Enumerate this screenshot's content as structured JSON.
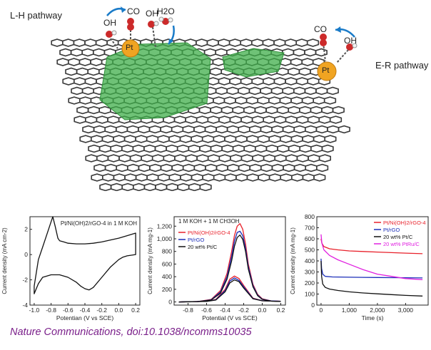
{
  "scene": {
    "lh_label": "L-H pathway",
    "er_label": "E-R pathway",
    "molecules": {
      "co": "CO",
      "oh": "OH",
      "h2o": "H2O"
    },
    "pt": "Pt"
  },
  "caption": "Nature Communications, doi:10.1038/ncomms10035",
  "chart_data": [
    {
      "type": "line",
      "annotation": "Pt/Ni(OH)2/rGO-4 in 1 M KOH",
      "xlabel": "Potentian (V vs SCE)",
      "ylabel": "Current density (mA cm-2)",
      "xlim": [
        -1.05,
        0.25
      ],
      "ylim": [
        -4,
        3
      ],
      "xticks": [
        "-1.0",
        "-0.8",
        "-0.6",
        "-0.4",
        "-0.2",
        "0.0",
        "0.2"
      ],
      "xtick_values": [
        -1.0,
        -0.8,
        -0.6,
        -0.4,
        -0.2,
        0.0,
        0.2
      ],
      "yticks": [
        "-4",
        "-2",
        "0",
        "2"
      ],
      "ytick_values": [
        -4,
        -2,
        0,
        2
      ],
      "series": [
        {
          "x": [
            -1.0,
            -0.95,
            -0.9,
            -0.85,
            -0.8,
            -0.78,
            -0.75,
            -0.72,
            -0.7,
            -0.65,
            -0.6,
            -0.5,
            -0.4,
            -0.3,
            -0.2,
            -0.1,
            0.0,
            0.1,
            0.2,
            0.2,
            0.15,
            0.1,
            0.05,
            0.0,
            -0.1,
            -0.2,
            -0.3,
            -0.35,
            -0.4,
            -0.45,
            -0.5,
            -0.6,
            -0.7,
            -0.8,
            -0.9,
            -0.95,
            -1.0,
            -1.0
          ],
          "y": [
            -2.5,
            -0.4,
            0.6,
            1.6,
            2.6,
            3.0,
            2.2,
            1.3,
            1.1,
            1.0,
            0.9,
            0.85,
            0.85,
            0.9,
            1.0,
            1.15,
            1.3,
            1.5,
            1.7,
            0.0,
            -0.05,
            -0.1,
            -0.2,
            -0.4,
            -1.0,
            -1.8,
            -2.6,
            -2.8,
            -2.7,
            -2.5,
            -2.2,
            -1.8,
            -1.6,
            -1.6,
            -1.8,
            -2.3,
            -3.1,
            -2.5
          ]
        }
      ]
    },
    {
      "type": "line",
      "annotation": "1 M KOH + 1 M CH3OH",
      "xlabel": "Potential (V vs SCE)",
      "ylabel": "Current density (mA mg-1)",
      "xlim": [
        -0.95,
        0.25
      ],
      "ylim": [
        -50,
        1350
      ],
      "xticks": [
        "-0.8",
        "-0.6",
        "-0.4",
        "-0.2",
        "0.0",
        "0.2"
      ],
      "xtick_values": [
        -0.8,
        -0.6,
        -0.4,
        -0.2,
        0.0,
        0.2
      ],
      "yticks": [
        "0",
        "200",
        "400",
        "600",
        "800",
        "1,000",
        "1,200"
      ],
      "ytick_values": [
        0,
        200,
        400,
        600,
        800,
        1000,
        1200
      ],
      "series": [
        {
          "name": "Pt/Ni(OH)2/rGO-4",
          "color": "#e8202a",
          "x": [
            -0.9,
            -0.7,
            -0.55,
            -0.45,
            -0.38,
            -0.33,
            -0.3,
            -0.27,
            -0.24,
            -0.21,
            -0.18,
            -0.15,
            -0.1,
            -0.05,
            0.0,
            0.1,
            0.2
          ],
          "y": [
            0,
            5,
            40,
            180,
            450,
            800,
            1050,
            1200,
            1240,
            1150,
            920,
            600,
            280,
            120,
            50,
            15,
            10
          ],
          "back_x": [
            0.2,
            0.0,
            -0.1,
            -0.2,
            -0.25,
            -0.3,
            -0.35,
            -0.4,
            -0.5,
            -0.6,
            -0.9
          ],
          "back_y": [
            10,
            20,
            60,
            260,
            370,
            410,
            360,
            200,
            40,
            10,
            0
          ]
        },
        {
          "name": "Pt/rGO",
          "color": "#1a2db8",
          "x": [
            -0.9,
            -0.7,
            -0.55,
            -0.45,
            -0.38,
            -0.33,
            -0.3,
            -0.27,
            -0.24,
            -0.21,
            -0.18,
            -0.15,
            -0.1,
            -0.05,
            0.0,
            0.1,
            0.2
          ],
          "y": [
            0,
            5,
            35,
            160,
            400,
            720,
            960,
            1100,
            1120,
            1050,
            850,
            560,
            260,
            110,
            45,
            15,
            10
          ],
          "back_x": [
            0.2,
            0.0,
            -0.1,
            -0.2,
            -0.25,
            -0.3,
            -0.35,
            -0.4,
            -0.5,
            -0.6,
            -0.9
          ],
          "back_y": [
            10,
            20,
            55,
            240,
            340,
            380,
            330,
            180,
            35,
            10,
            0
          ]
        },
        {
          "name": "20 wt% Pt/C",
          "color": "#111111",
          "x": [
            -0.9,
            -0.7,
            -0.55,
            -0.45,
            -0.38,
            -0.33,
            -0.3,
            -0.27,
            -0.24,
            -0.21,
            -0.18,
            -0.15,
            -0.1,
            -0.05,
            0.0,
            0.1,
            0.2
          ],
          "y": [
            0,
            4,
            30,
            140,
            360,
            650,
            880,
            1020,
            1060,
            990,
            800,
            520,
            240,
            100,
            40,
            12,
            8
          ],
          "back_x": [
            0.2,
            0.0,
            -0.1,
            -0.2,
            -0.25,
            -0.3,
            -0.35,
            -0.4,
            -0.5,
            -0.6,
            -0.9
          ],
          "back_y": [
            8,
            18,
            50,
            220,
            320,
            350,
            300,
            160,
            30,
            8,
            0
          ]
        }
      ]
    },
    {
      "type": "line",
      "xlabel": "Time (s)",
      "ylabel": "Current density (mA mg-1)",
      "xlim": [
        -150,
        3800
      ],
      "ylim": [
        0,
        800
      ],
      "xticks": [
        "0",
        "1,000",
        "2,000",
        "3,000"
      ],
      "xtick_values": [
        0,
        1000,
        2000,
        3000
      ],
      "yticks": [
        "0",
        "100",
        "200",
        "300",
        "400",
        "500",
        "600",
        "700",
        "800"
      ],
      "ytick_values": [
        0,
        100,
        200,
        300,
        400,
        500,
        600,
        700,
        800
      ],
      "series": [
        {
          "name": "Pt/Ni(OH)2/rGO-4",
          "color": "#e8202a",
          "x": [
            0,
            30,
            100,
            300,
            600,
            1000,
            1500,
            2000,
            2500,
            3000,
            3600
          ],
          "y": [
            600,
            560,
            530,
            510,
            500,
            490,
            485,
            480,
            475,
            470,
            465
          ]
        },
        {
          "name": "Pt/rGO",
          "color": "#1a2db8",
          "x": [
            0,
            20,
            60,
            150,
            400,
            1000,
            2000,
            3000,
            3600
          ],
          "y": [
            420,
            330,
            280,
            260,
            255,
            252,
            250,
            248,
            246
          ]
        },
        {
          "name": "20 wt% Pt/C",
          "color": "#111111",
          "x": [
            0,
            20,
            60,
            150,
            300,
            600,
            1000,
            1500,
            2000,
            2500,
            3000,
            3600
          ],
          "y": [
            400,
            260,
            190,
            160,
            145,
            132,
            120,
            110,
            102,
            95,
            88,
            82
          ]
        },
        {
          "name": "20 wt% PtRu/C",
          "color": "#e020e0",
          "x": [
            0,
            30,
            100,
            300,
            600,
            1000,
            1500,
            2000,
            2500,
            3000,
            3600
          ],
          "y": [
            640,
            560,
            500,
            450,
            410,
            370,
            320,
            280,
            260,
            240,
            230
          ]
        }
      ]
    }
  ]
}
